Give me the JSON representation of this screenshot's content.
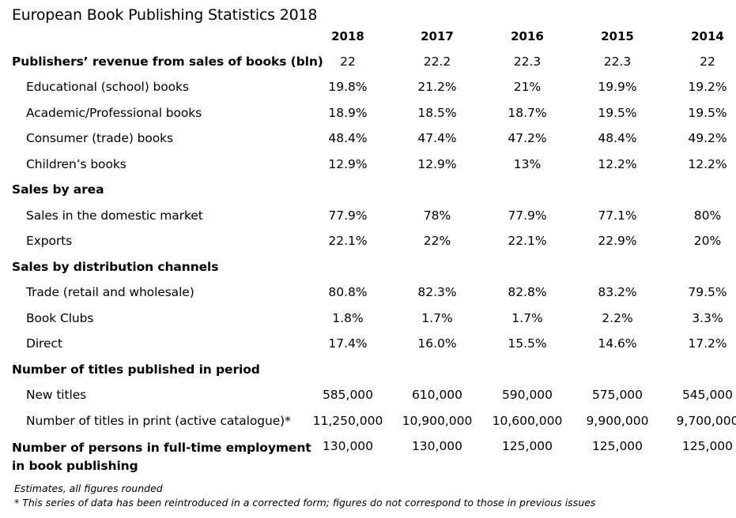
{
  "title": "European Book Publishing Statistics 2018",
  "years": [
    "2018",
    "2017",
    "2016",
    "2015",
    "2014"
  ],
  "rows": [
    {
      "label": "Publishers’ revenue from sales of books (bln)",
      "style": "bold",
      "values": [
        "22",
        "22.2",
        "22.3",
        "22.3",
        "22"
      ]
    },
    {
      "label": "Educational (school) books",
      "style": "sub",
      "values": [
        "19.8%",
        "21.2%",
        "21%",
        "19.9%",
        "19.2%"
      ]
    },
    {
      "label": "Academic/Professional books",
      "style": "sub",
      "values": [
        "18.9%",
        "18.5%",
        "18.7%",
        "19.5%",
        "19.5%"
      ]
    },
    {
      "label": "Consumer (trade) books",
      "style": "sub",
      "values": [
        "48.4%",
        "47.4%",
        "47.2%",
        "48.4%",
        "49.2%"
      ]
    },
    {
      "label": "Children’s books",
      "style": "sub",
      "values": [
        "12.9%",
        "12.9%",
        "13%",
        "12.2%",
        "12.2%"
      ]
    },
    {
      "label": "Sales by area",
      "style": "bold",
      "values": []
    },
    {
      "label": "Sales in the domestic market",
      "style": "sub",
      "values": [
        "77.9%",
        "78%",
        "77.9%",
        "77.1%",
        "80%"
      ]
    },
    {
      "label": "Exports",
      "style": "sub",
      "values": [
        "22.1%",
        "22%",
        "22.1%",
        "22.9%",
        "20%"
      ]
    },
    {
      "label": "Sales by distribution channels",
      "style": "bold",
      "values": []
    },
    {
      "label": "Trade (retail and wholesale)",
      "style": "sub",
      "values": [
        "80.8%",
        "82.3%",
        "82.8%",
        "83.2%",
        "79.5%"
      ]
    },
    {
      "label": "Book Clubs",
      "style": "sub",
      "values": [
        "1.8%",
        "1.7%",
        "1.7%",
        "2.2%",
        "3.3%"
      ]
    },
    {
      "label": "Direct",
      "style": "sub",
      "values": [
        "17.4%",
        "16.0%",
        "15.5%",
        "14.6%",
        "17.2%"
      ]
    },
    {
      "label": "Number of titles published in period",
      "style": "bold",
      "values": []
    },
    {
      "label": "New titles",
      "style": "sub",
      "values": [
        "585,000",
        "610,000",
        "590,000",
        "575,000",
        "545,000"
      ]
    },
    {
      "label": "Number of titles in print (active catalogue)*",
      "style": "sub",
      "values": [
        "11,250,000",
        "10,900,000",
        "10,600,000",
        "9,900,000",
        "9,700,000"
      ]
    },
    {
      "label": "Number of persons in full-time employment",
      "label2": "in book publishing",
      "style": "bold",
      "values": [
        "130,000",
        "130,000",
        "125,000",
        "125,000",
        "125,000"
      ]
    }
  ],
  "notes": [
    "Estimates, all figures rounded",
    "* This series of data has been reintroduced in a corrected form; figures do not correspond to those in previous issues"
  ]
}
